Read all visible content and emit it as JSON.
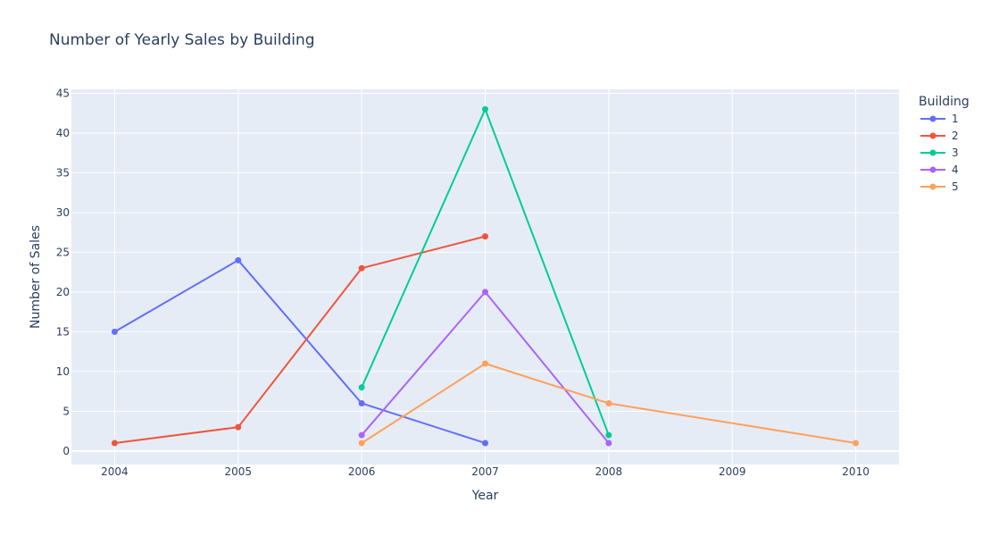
{
  "chart_data": {
    "type": "line",
    "title": "Number of Yearly Sales by Building",
    "xlabel": "Year",
    "ylabel": "Number of Sales",
    "xlim": [
      2003.65,
      2010.35
    ],
    "ylim": [
      -1.7,
      45.5
    ],
    "x_ticks": [
      "2004",
      "2005",
      "2006",
      "2007",
      "2008",
      "2009",
      "2010"
    ],
    "y_ticks": [
      "0",
      "5",
      "10",
      "15",
      "20",
      "25",
      "30",
      "35",
      "40",
      "45"
    ],
    "grid": true,
    "legend_title": "Building",
    "legend_position": "right",
    "series": [
      {
        "name": "1",
        "color": "#636efa",
        "x": [
          2004,
          2005,
          2006,
          2007
        ],
        "values": [
          15,
          24,
          6,
          1
        ]
      },
      {
        "name": "2",
        "color": "#ef553b",
        "x": [
          2004,
          2005,
          2006,
          2007
        ],
        "values": [
          1,
          3,
          23,
          27
        ]
      },
      {
        "name": "3",
        "color": "#00cc96",
        "x": [
          2006,
          2007,
          2008
        ],
        "values": [
          8,
          43,
          2
        ]
      },
      {
        "name": "4",
        "color": "#ab63fa",
        "x": [
          2006,
          2007,
          2008
        ],
        "values": [
          2,
          20,
          1
        ]
      },
      {
        "name": "5",
        "color": "#ffa15a",
        "x": [
          2006,
          2007,
          2008,
          2010
        ],
        "values": [
          1,
          11,
          6,
          1
        ]
      }
    ]
  }
}
